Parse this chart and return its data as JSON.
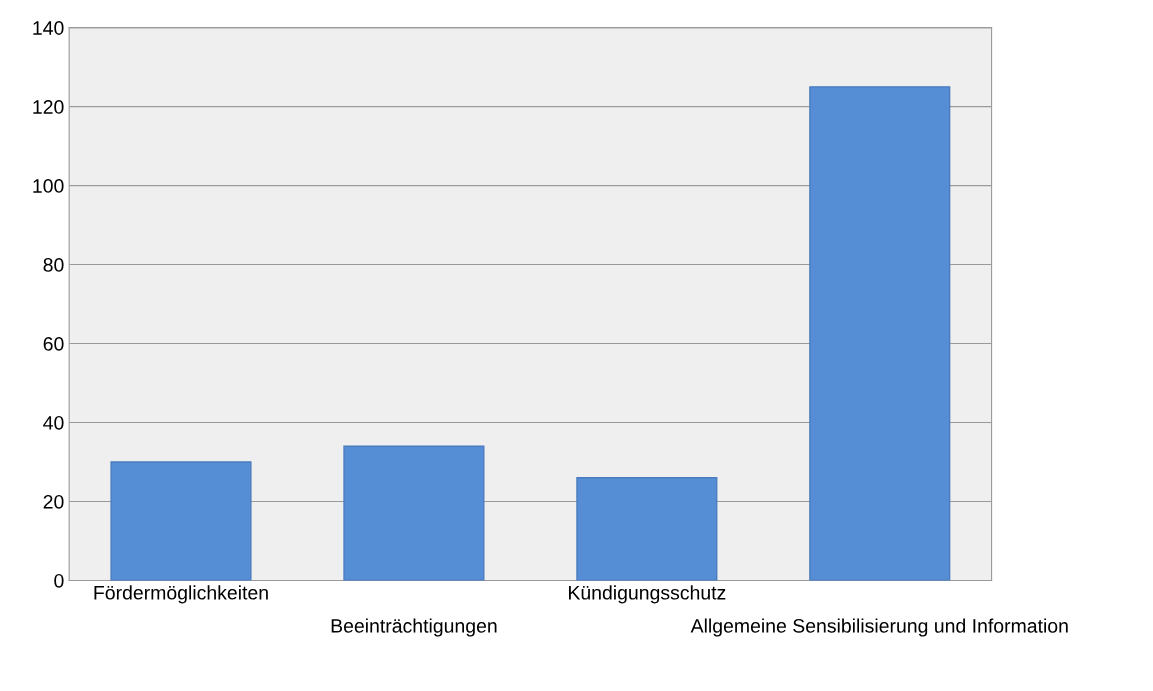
{
  "chart_data": {
    "type": "bar",
    "categories": [
      "Fördermöglichkeiten",
      "Beeinträchtigungen",
      "Kündigungsschutz",
      "Allgemeine Sensibilisierung und Information"
    ],
    "values": [
      30,
      34,
      26,
      125
    ],
    "color": "#558ed5",
    "ylim": [
      0,
      140
    ],
    "yticks": [
      0,
      20,
      40,
      60,
      80,
      100,
      120,
      140
    ],
    "grid": "y"
  }
}
